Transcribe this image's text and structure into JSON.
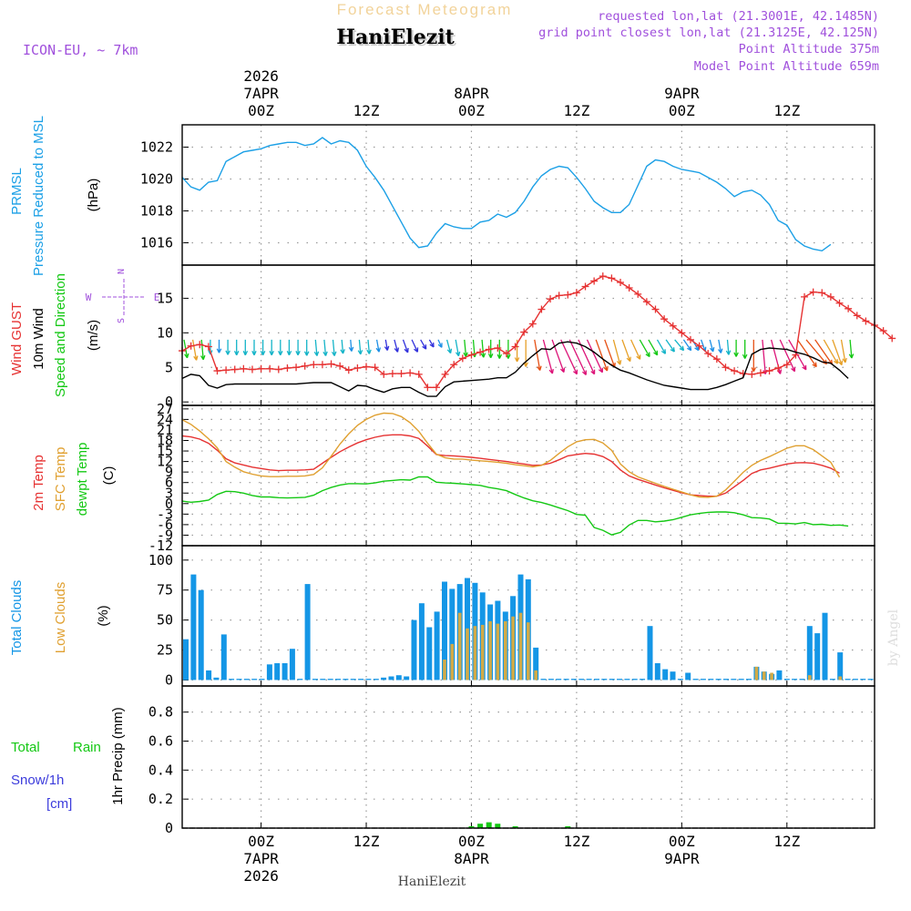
{
  "header": {
    "subtitle": "Forecast Meteogram",
    "station": "HaniElezit",
    "model": "ICON-EU, ~ 7km",
    "requested": "requested lon,lat (21.3001E, 42.1485N)",
    "closest": "grid point closest lon,lat (21.3125E, 42.125N)",
    "point_altitude": "Point Altitude 375m",
    "model_altitude": "Model Point Altitude 659m",
    "footer_station": "HaniElezit",
    "credit": "by Angel"
  },
  "time_axis": {
    "day_labels": [
      {
        "hour": 9,
        "top": [
          "2026",
          "7APR",
          "00Z"
        ],
        "bottom": [
          "00Z",
          "7APR",
          "2026"
        ]
      },
      {
        "hour": 21,
        "top": [
          "12Z"
        ],
        "bottom": [
          "12Z"
        ]
      },
      {
        "hour": 33,
        "top": [
          "8APR",
          "00Z"
        ],
        "bottom": [
          "00Z",
          "8APR"
        ]
      },
      {
        "hour": 45,
        "top": [
          "12Z"
        ],
        "bottom": [
          "12Z"
        ]
      },
      {
        "hour": 57,
        "top": [
          "9APR",
          "00Z"
        ],
        "bottom": [
          "00Z",
          "9APR"
        ]
      },
      {
        "hour": 69,
        "top": [
          "12Z"
        ],
        "bottom": [
          "12Z"
        ]
      }
    ]
  },
  "colors": {
    "pressure": "#1ca0e6",
    "gust": "#e63232",
    "wind10m": "#000000",
    "temp2m": "#e63232",
    "sfctemp": "#e0a030",
    "dewpoint": "#14c814",
    "totalclouds": "#1496e6",
    "lowclouds": "#d2aa46",
    "precip": "#14c814",
    "meta": "#a050dc"
  },
  "chart_data": [
    {
      "type": "line",
      "title": "PRMSL Pressure Reduced to MSL",
      "axis_title": [
        "PRMSL",
        "Pressure Reduced to MSL"
      ],
      "ylabel": "(hPa)",
      "ylim": [
        1014.6,
        1023.4
      ],
      "yticks": [
        1016,
        1018,
        1020,
        1022
      ],
      "x_start_hour": 0,
      "x_step_hour": 1,
      "series": [
        {
          "name": "PRMSL",
          "values": [
            1020.1,
            1019.5,
            1019.3,
            1019.8,
            1019.9,
            1021.1,
            1021.4,
            1021.7,
            1021.8,
            1021.9,
            1022.1,
            1022.2,
            1022.3,
            1022.3,
            1022.1,
            1022.2,
            1022.6,
            1022.2,
            1022.4,
            1022.3,
            1021.8,
            1020.8,
            1020.1,
            1019.3,
            1018.3,
            1017.3,
            1016.3,
            1015.7,
            1015.8,
            1016.6,
            1017.2,
            1017.0,
            1016.9,
            1016.9,
            1017.3,
            1017.4,
            1017.8,
            1017.6,
            1017.9,
            1018.6,
            1019.5,
            1020.2,
            1020.6,
            1020.8,
            1020.7,
            1020.1,
            1019.4,
            1018.6,
            1018.2,
            1017.9,
            1017.9,
            1018.4,
            1019.6,
            1020.8,
            1021.2,
            1021.1,
            1020.8,
            1020.6,
            1020.5,
            1020.4,
            1020.1,
            1019.8,
            1019.4,
            1018.9,
            1019.2,
            1019.3,
            1019.0,
            1018.4,
            1017.4,
            1017.1,
            1016.2,
            1015.8,
            1015.6,
            1015.5,
            1015.9
          ]
        }
      ]
    },
    {
      "type": "line",
      "title": "Wind GUST, 10m Wind Speed and Direction",
      "axis_title": [
        "Wind GUST",
        "10m Wind",
        "Speed and Direction"
      ],
      "ylabel": "(m/s)",
      "compass": {
        "n": "N",
        "s": "S",
        "w": "W",
        "e": "E"
      },
      "ylim": [
        -0.5,
        19.8
      ],
      "yticks": [
        0,
        5,
        10,
        15
      ],
      "x_start_hour": 0,
      "x_step_hour": 1,
      "series": [
        {
          "name": "Wind GUST",
          "values": [
            7.4,
            8.1,
            8.3,
            8.0,
            4.5,
            4.6,
            4.7,
            4.8,
            4.7,
            4.8,
            4.8,
            4.7,
            4.9,
            5.0,
            5.2,
            5.4,
            5.4,
            5.5,
            5.2,
            4.6,
            4.9,
            5.1,
            5.0,
            4.0,
            4.1,
            4.1,
            4.2,
            4.0,
            2.1,
            2.1,
            4.0,
            5.4,
            6.3,
            6.8,
            7.2,
            7.6,
            7.8,
            7.0,
            8.0,
            10.1,
            11.3,
            13.4,
            14.9,
            15.4,
            15.5,
            15.8,
            16.7,
            17.5,
            18.2,
            17.9,
            17.3,
            16.5,
            15.6,
            14.5,
            13.4,
            12.0,
            11.0,
            10.0,
            9.0,
            8.1,
            7.0,
            6.2,
            5.0,
            4.5,
            4.1,
            4.0,
            4.2,
            4.5,
            4.9,
            5.4,
            6.8,
            15.2,
            15.9,
            15.8,
            15.2,
            14.3,
            13.5,
            12.5,
            11.7,
            11.1,
            10.3,
            9.2
          ]
        },
        {
          "name": "10m Wind",
          "values": [
            3.4,
            4.0,
            3.8,
            2.4,
            2.0,
            2.5,
            2.6,
            2.6,
            2.6,
            2.6,
            2.6,
            2.6,
            2.6,
            2.6,
            2.7,
            2.8,
            2.8,
            2.8,
            2.2,
            1.6,
            2.4,
            2.3,
            1.8,
            1.4,
            1.9,
            2.1,
            2.1,
            1.4,
            0.8,
            0.8,
            2.2,
            2.9,
            3.0,
            3.1,
            3.2,
            3.3,
            3.5,
            3.5,
            4.3,
            5.6,
            6.7,
            7.7,
            7.6,
            8.5,
            8.7,
            8.5,
            8.0,
            7.2,
            6.2,
            5.3,
            4.6,
            4.2,
            3.7,
            3.2,
            2.8,
            2.4,
            2.2,
            2.0,
            1.8,
            1.8,
            1.8,
            2.1,
            2.5,
            3.0,
            3.5,
            6.9,
            7.6,
            7.8,
            7.7,
            7.6,
            7.2,
            6.9,
            6.4,
            5.8,
            5.6,
            4.6,
            3.4
          ]
        },
        {
          "name": "Arrow directions (deg, from N clockwise, pointing to)",
          "values": [
            170,
            170,
            175,
            180,
            180,
            180,
            180,
            180,
            180,
            180,
            180,
            180,
            180,
            180,
            180,
            175,
            175,
            175,
            175,
            175,
            175,
            175,
            170,
            170,
            165,
            160,
            155,
            150,
            150,
            155,
            165,
            170,
            175,
            175,
            175,
            180,
            180,
            180,
            180,
            180,
            170,
            165,
            160,
            155,
            155,
            155,
            155,
            160,
            160,
            165,
            160,
            155,
            150,
            150,
            150,
            145,
            140,
            145,
            150,
            160,
            165,
            170,
            175,
            180,
            180,
            180,
            175,
            165,
            155,
            150,
            145,
            140,
            145,
            150,
            160,
            170,
            175
          ]
        }
      ]
    },
    {
      "type": "line",
      "title": "2m Temp, SFC Temp, dewpt Temp",
      "axis_title": [
        "2m Temp",
        "SFC Temp",
        "dewpt Temp"
      ],
      "ylabel": "(C)",
      "ylim": [
        -12,
        28
      ],
      "yticks": [
        -12,
        -9,
        -6,
        -3,
        0,
        3,
        6,
        9,
        12,
        15,
        18,
        21,
        24,
        27
      ],
      "x_start_hour": 0,
      "x_step_hour": 1,
      "series": [
        {
          "name": "2m Temp",
          "values": [
            19.3,
            19.0,
            18.4,
            17.2,
            15.2,
            12.8,
            11.6,
            11.0,
            10.4,
            10.0,
            9.6,
            9.4,
            9.5,
            9.5,
            9.6,
            9.8,
            11.5,
            13.2,
            14.8,
            16.1,
            17.3,
            18.2,
            18.9,
            19.4,
            19.6,
            19.6,
            19.3,
            18.6,
            16.4,
            14.0,
            13.7,
            13.6,
            13.4,
            13.2,
            12.9,
            12.6,
            12.3,
            12.0,
            11.6,
            11.3,
            10.9,
            11.0,
            11.5,
            12.5,
            13.6,
            14.0,
            14.3,
            14.1,
            13.4,
            12.0,
            9.6,
            7.9,
            6.9,
            6.1,
            5.3,
            4.5,
            3.8,
            3.1,
            2.5,
            2.3,
            2.1,
            2.1,
            3.0,
            4.8,
            6.6,
            8.6,
            9.6,
            10.1,
            10.7,
            11.3,
            11.6,
            11.7,
            11.5,
            10.9,
            10.1,
            8.7
          ]
        },
        {
          "name": "SFC Temp",
          "values": [
            23.9,
            22.6,
            20.7,
            18.5,
            15.9,
            12.0,
            10.4,
            9.1,
            8.4,
            7.9,
            7.7,
            7.7,
            7.8,
            7.8,
            7.9,
            8.3,
            10.2,
            13.5,
            17.0,
            19.9,
            22.3,
            24.0,
            25.2,
            25.8,
            25.7,
            24.8,
            23.1,
            20.6,
            17.2,
            14.1,
            13.1,
            12.7,
            12.7,
            12.4,
            12.2,
            12.0,
            11.8,
            11.5,
            11.1,
            10.8,
            10.5,
            10.9,
            12.3,
            14.3,
            16.2,
            17.6,
            18.2,
            18.3,
            17.3,
            15.2,
            11.3,
            9.1,
            7.6,
            6.7,
            5.8,
            4.9,
            4.1,
            3.3,
            2.5,
            1.9,
            1.8,
            2.1,
            3.9,
            6.4,
            8.9,
            10.9,
            12.3,
            13.4,
            14.6,
            15.8,
            16.5,
            16.5,
            15.4,
            13.6,
            11.8,
            7.5
          ]
        },
        {
          "name": "dewpt Temp",
          "values": [
            0.7,
            0.4,
            0.6,
            1.0,
            2.6,
            3.5,
            3.4,
            3.0,
            2.3,
            1.9,
            1.9,
            1.7,
            1.6,
            1.7,
            1.8,
            2.4,
            3.7,
            4.6,
            5.3,
            5.7,
            5.7,
            5.6,
            5.9,
            6.4,
            6.6,
            6.8,
            6.7,
            7.6,
            7.6,
            6.1,
            5.9,
            5.8,
            5.6,
            5.4,
            5.2,
            4.6,
            4.2,
            3.7,
            2.6,
            1.6,
            0.8,
            0.3,
            -0.4,
            -1.2,
            -2.0,
            -3.1,
            -3.3,
            -6.8,
            -7.6,
            -8.9,
            -8.2,
            -6.1,
            -4.8,
            -4.8,
            -5.2,
            -5.0,
            -4.6,
            -3.9,
            -3.2,
            -2.8,
            -2.5,
            -2.4,
            -2.4,
            -2.6,
            -3.2,
            -4.0,
            -4.1,
            -4.4,
            -5.6,
            -5.6,
            -5.8,
            -5.4,
            -6.0,
            -5.9,
            -6.2,
            -6.1,
            -6.4
          ]
        }
      ]
    },
    {
      "type": "bar",
      "title": "Total Clouds, Low Clouds",
      "axis_title": [
        "Total Clouds",
        "Low Clouds"
      ],
      "ylabel": "(%)",
      "ylim": [
        -5,
        112
      ],
      "yticks": [
        0,
        25,
        50,
        75,
        100
      ],
      "x_start_hour": 0,
      "x_step_hour": 1,
      "series": [
        {
          "name": "Total Clouds",
          "values": [
            34,
            88,
            75,
            8,
            2,
            38,
            1,
            1,
            1,
            1,
            1,
            13,
            14,
            14,
            26,
            1,
            80,
            1,
            1,
            1,
            1,
            1,
            1,
            1,
            1,
            1,
            2,
            3,
            4,
            3,
            50,
            64,
            44,
            57,
            82,
            76,
            80,
            85,
            81,
            73,
            63,
            66,
            57,
            70,
            88,
            84,
            27,
            1,
            1,
            1,
            1,
            1,
            1,
            1,
            1,
            1,
            1,
            1,
            1,
            1,
            1,
            45,
            14,
            9,
            7,
            1,
            6,
            1,
            1,
            1,
            1,
            1,
            1,
            1,
            1,
            11,
            7,
            5,
            8,
            1,
            1,
            1,
            45,
            39,
            56,
            1,
            23,
            1,
            1,
            1,
            1
          ]
        },
        {
          "name": "Low Clouds",
          "values": [
            0,
            0,
            0,
            0,
            0,
            0,
            0,
            0,
            0,
            0,
            0,
            0,
            0,
            0,
            0,
            0,
            0,
            0,
            0,
            0,
            0,
            0,
            0,
            0,
            0,
            0,
            0,
            0,
            0,
            0,
            0,
            0,
            0,
            0,
            17,
            30,
            56,
            43,
            45,
            46,
            49,
            47,
            49,
            53,
            56,
            48,
            8,
            0,
            0,
            0,
            0,
            0,
            0,
            0,
            0,
            0,
            0,
            0,
            0,
            0,
            0,
            0,
            0,
            0,
            0,
            0,
            0,
            0,
            0,
            0,
            0,
            0,
            0,
            0,
            0,
            11,
            7,
            6,
            0,
            0,
            0,
            0,
            4,
            0,
            0,
            0,
            3,
            0,
            0,
            0,
            0
          ]
        }
      ]
    },
    {
      "type": "bar",
      "title": "Total Rain, Snow/1h [cm]",
      "axis_title": [
        "Total",
        "Rain",
        "Snow/1h",
        "[cm]"
      ],
      "ylabel": "1hr Precip (mm)",
      "ylim": [
        0,
        0.98
      ],
      "yticks": [
        0,
        0.2,
        0.4,
        0.6,
        0.8
      ],
      "ytick_labels": [
        "0",
        "0.2",
        "0.4",
        "0.6",
        "0.8"
      ],
      "x_start_hour": 0,
      "x_step_hour": 1,
      "series": [
        {
          "name": "Total Rain",
          "values": [
            0,
            0,
            0,
            0,
            0,
            0,
            0,
            0,
            0,
            0,
            0,
            0,
            0,
            0,
            0,
            0,
            0,
            0,
            0,
            0,
            0,
            0,
            0,
            0,
            0,
            0,
            0,
            0,
            0,
            0,
            0,
            0,
            0,
            0.01,
            0.03,
            0.04,
            0.03,
            0,
            0.01,
            0,
            0,
            0,
            0,
            0,
            0.005,
            0,
            0,
            0,
            0,
            0,
            0,
            0,
            0,
            0,
            0,
            0,
            0,
            0,
            0,
            0,
            0,
            0,
            0,
            0,
            0,
            0,
            0,
            0,
            0,
            0,
            0,
            0,
            0,
            0,
            0,
            0
          ]
        },
        {
          "name": "Snow/1h",
          "values": []
        }
      ]
    }
  ]
}
